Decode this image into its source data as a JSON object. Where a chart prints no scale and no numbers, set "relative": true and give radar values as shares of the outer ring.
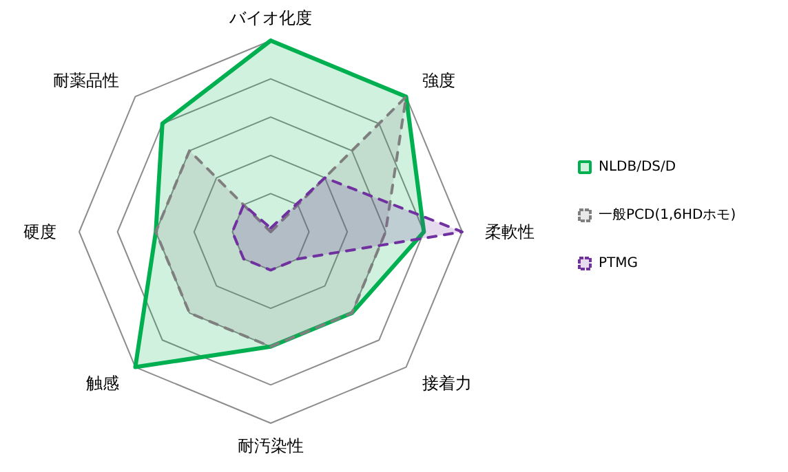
{
  "chart_data": {
    "type": "radar",
    "relative": true,
    "grid": true,
    "legend": "right",
    "marker": "none",
    "categories": [
      "バイオ化度",
      "強度",
      "柔軟性",
      "接着力",
      "耐汚染性",
      "触感",
      "硬度",
      "耐薬品性"
    ],
    "series": [
      {
        "name": "NLDB/DS/D",
        "color": "#00b050",
        "line_style": "solid",
        "values": [
          1.0,
          1.0,
          0.8,
          0.6,
          0.6,
          1.0,
          0.6,
          0.8
        ]
      },
      {
        "name": "一般PCD(1,6HDホモ)",
        "color": "#7f7f7f",
        "line_style": "dashed",
        "values": [
          0,
          1.0,
          0.6,
          0.6,
          0.6,
          0.6,
          0.6,
          0.6
        ]
      },
      {
        "name": "PTMG",
        "color": "#7030a0",
        "line_style": "dashed",
        "values": [
          0.02,
          0.4,
          1.0,
          0.2,
          0.2,
          0.2,
          0.2,
          0.2
        ]
      }
    ]
  }
}
